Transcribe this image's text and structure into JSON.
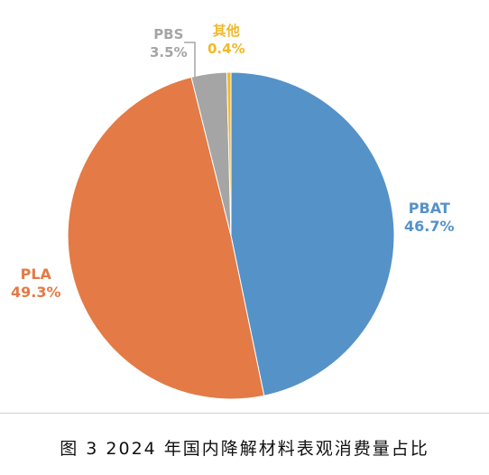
{
  "chart_data": {
    "type": "pie",
    "title": "",
    "slices": [
      {
        "label": "PBAT",
        "value": 46.7,
        "value_label": "46.7%",
        "color": "#5592C8"
      },
      {
        "label": "PLA",
        "value": 49.3,
        "value_label": "49.3%",
        "color": "#E47A45"
      },
      {
        "label": "PBS",
        "value": 3.5,
        "value_label": "3.5%",
        "color": "#A5A5A5"
      },
      {
        "label": "其他",
        "value": 0.4,
        "value_label": "0.4%",
        "color": "#F2B927"
      }
    ],
    "start_angle": "12 o'clock",
    "direction": "clockwise"
  },
  "caption": "图 3  2024 年国内降解材料表观消费量占比"
}
